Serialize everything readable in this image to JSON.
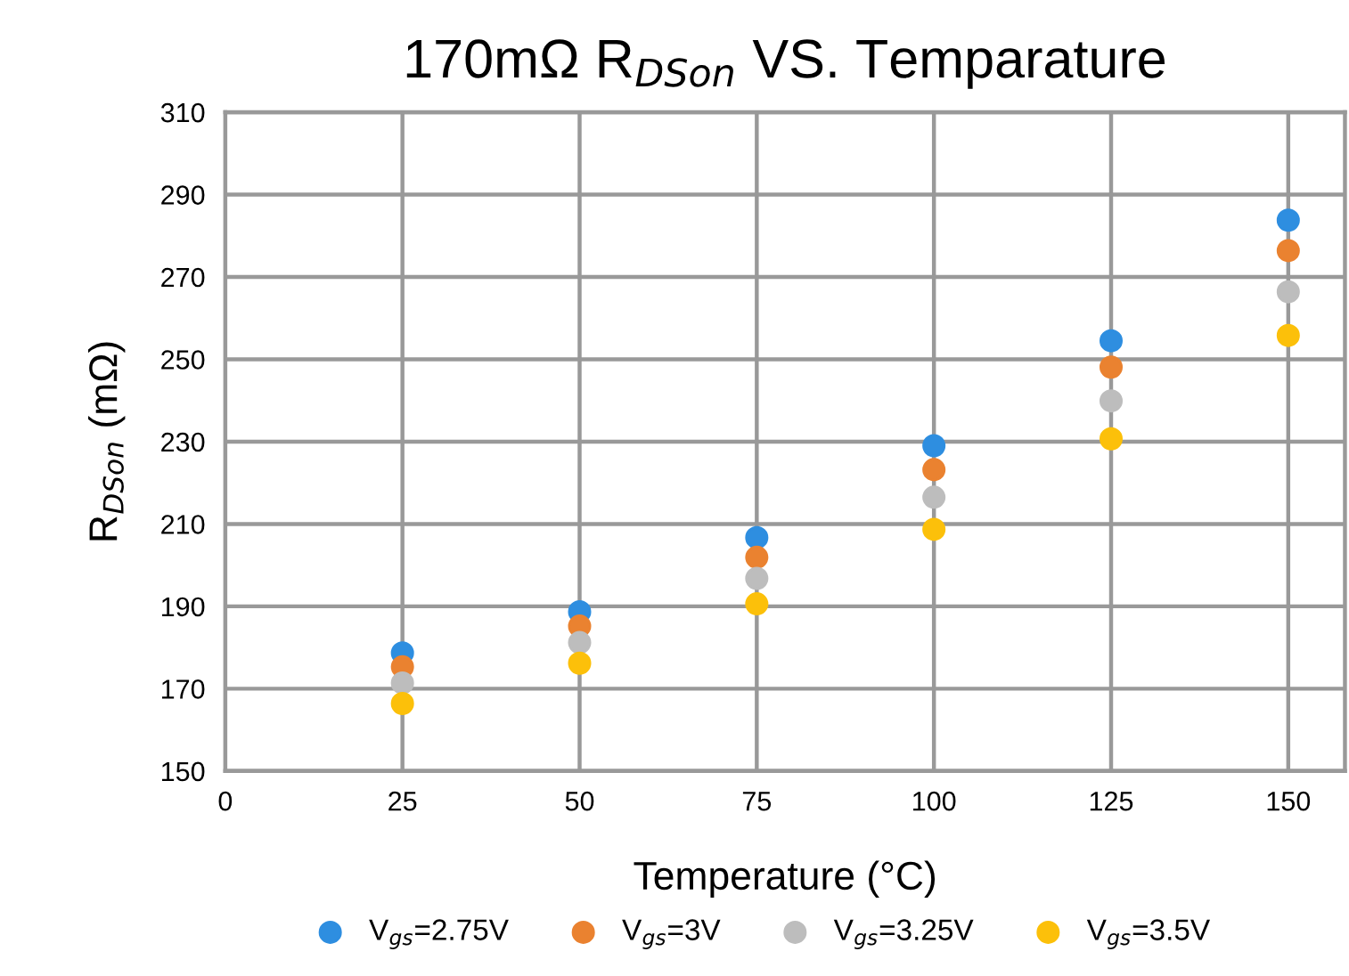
{
  "chart_data": {
    "type": "scatter",
    "title": "170mΩ R$_{DSon}$ VS. Temparature",
    "xlabel": "Temperature (°C)",
    "ylabel": "R$_{DSon}$ (mΩ)",
    "x": [
      25,
      50,
      75,
      100,
      125,
      150
    ],
    "series": [
      {
        "name": "V$_{gs}$=2.75V",
        "color": "#2e8ee0",
        "values": [
          178.7,
          188.7,
          206.7,
          229,
          254.5,
          283.8
        ]
      },
      {
        "name": "V$_{gs}$=3V",
        "color": "#ea8230",
        "values": [
          175.3,
          185.2,
          201.9,
          223.2,
          248.1,
          276.4
        ]
      },
      {
        "name": "V$_{gs}$=3.25V",
        "color": "#bdbdbd",
        "values": [
          171.4,
          181.2,
          196.8,
          216.5,
          239.9,
          266.4
        ]
      },
      {
        "name": "V$_{gs}$=3.5V",
        "color": "#fcc00a",
        "values": [
          166.4,
          176.2,
          190.6,
          208.7,
          230.7,
          255.8
        ]
      }
    ],
    "xlim": [
      0,
      158
    ],
    "xticks": [
      0,
      25,
      50,
      75,
      100,
      125,
      150
    ],
    "ylim": [
      150,
      310
    ],
    "yticks": [
      150,
      170,
      190,
      210,
      230,
      250,
      270,
      290,
      310
    ],
    "grid": true,
    "legend": "bottom",
    "marker": "circle"
  }
}
